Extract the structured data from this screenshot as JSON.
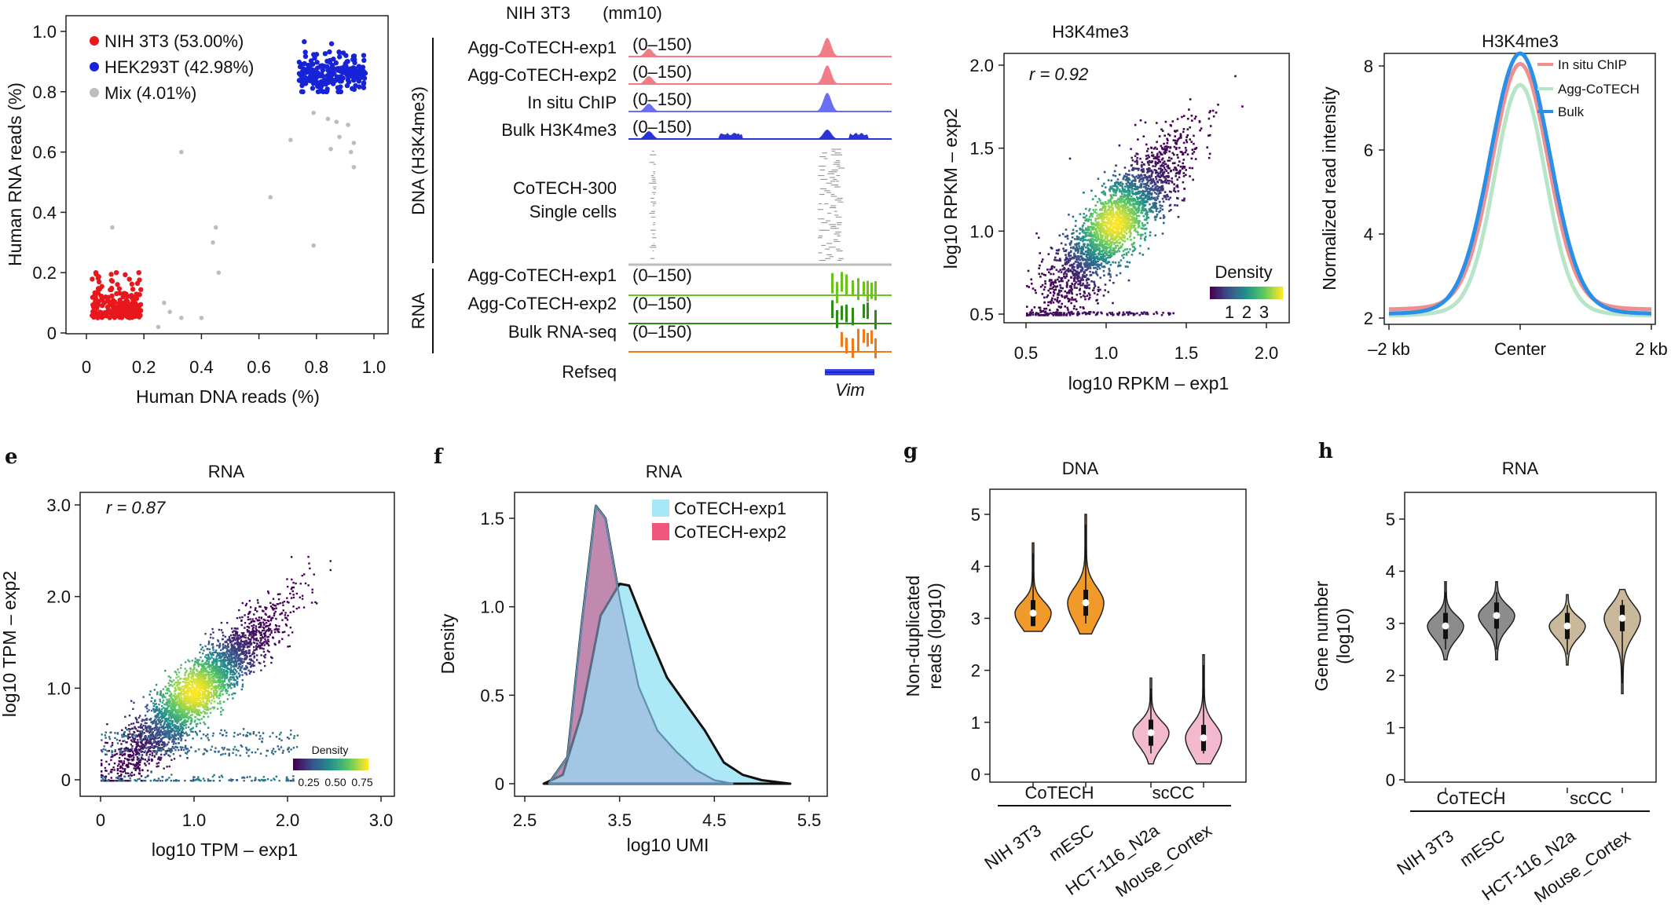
{
  "colors": {
    "red": "#e8171c",
    "blue": "#1723d6",
    "grey": "#bdbdbd",
    "trackRed": "#f07c86",
    "trackBlue": "#6a6ef0",
    "bulkBlue": "#2a33d8",
    "green": "#6cc11c",
    "darkGreen": "#2f8a1a",
    "orange": "#f07a18",
    "cyan": "#a6e6f5",
    "pink": "#f0567a",
    "violinOrange": "#f19a2a",
    "violinPink": "#f3b9cf",
    "violinGrey": "#8c8c8c",
    "violinTan": "#c9b99a",
    "profileRed": "#f08f8f",
    "profileGreen": "#b7e5c8",
    "profileBlue": "#2a8fe6"
  },
  "panelA": {
    "chart_data": {
      "type": "scatter",
      "xlabel": "Human DNA reads (%)",
      "ylabel": "Human RNA reads (%)",
      "xlim": [
        0,
        1
      ],
      "ylim": [
        0,
        1
      ],
      "xticks": [
        "0",
        "0.2",
        "0.4",
        "0.6",
        "0.8",
        "1.0"
      ],
      "yticks": [
        "0",
        "0.2",
        "0.4",
        "0.6",
        "0.8",
        "1.0"
      ],
      "series": [
        {
          "name": "NIH 3T3 (53.00%)",
          "color": "#e8171c",
          "x_range": [
            0.02,
            0.19
          ],
          "y_range": [
            0.0,
            0.2
          ]
        },
        {
          "name": "HEK293T (42.98%)",
          "color": "#1723d6",
          "x_range": [
            0.74,
            0.97
          ],
          "y_range": [
            0.8,
            0.98
          ]
        },
        {
          "name": "Mix (4.01%)",
          "color": "#bdbdbd",
          "points": [
            [
              0.09,
              0.35
            ],
            [
              0.33,
              0.6
            ],
            [
              0.45,
              0.35
            ],
            [
              0.44,
              0.3
            ],
            [
              0.46,
              0.2
            ],
            [
              0.4,
              0.05
            ],
            [
              0.33,
              0.05
            ],
            [
              0.29,
              0.07
            ],
            [
              0.27,
              0.1
            ],
            [
              0.25,
              0.02
            ],
            [
              0.64,
              0.45
            ],
            [
              0.71,
              0.64
            ],
            [
              0.79,
              0.29
            ],
            [
              0.79,
              0.73
            ],
            [
              0.84,
              0.71
            ],
            [
              0.87,
              0.7
            ],
            [
              0.91,
              0.69
            ],
            [
              0.93,
              0.63
            ],
            [
              0.93,
              0.55
            ],
            [
              0.88,
              0.65
            ],
            [
              0.85,
              0.61
            ],
            [
              0.92,
              0.6
            ]
          ]
        }
      ],
      "legend": "top-left"
    }
  },
  "panelB": {
    "header_left": "NIH 3T3",
    "header_right": "(mm10)",
    "group_dna": "DNA (H3K4me3)",
    "group_rna": "RNA",
    "tracks": [
      {
        "label": "Agg-CoTECH-exp1",
        "range": "(0–150)",
        "color": "#f07c86"
      },
      {
        "label": "Agg-CoTECH-exp2",
        "range": "(0–150)",
        "color": "#f07c86"
      },
      {
        "label": "In situ ChIP",
        "range": "(0–150)",
        "color": "#6a6ef0"
      },
      {
        "label": "Bulk H3K4me3",
        "range": "(0–150)",
        "color": "#2a33d8"
      }
    ],
    "single_cells_label_1": "CoTECH-300",
    "single_cells_label_2": "Single cells",
    "rna_tracks": [
      {
        "label": "Agg-CoTECH-exp1",
        "range": "(0–150)",
        "color": "#6cc11c"
      },
      {
        "label": "Agg-CoTECH-exp2",
        "range": "(0–150)",
        "color": "#2f8a1a"
      },
      {
        "label": "Bulk RNA-seq",
        "range": "(0–150)",
        "color": "#f07a18"
      }
    ],
    "refseq_label": "Refseq",
    "gene": "Vim"
  },
  "panelC": {
    "chart_data": {
      "type": "scatter",
      "title": "H3K4me3",
      "annotation": "r = 0.92",
      "xlabel": "log10 RPKM – exp1",
      "ylabel": "log10 RPKM – exp2",
      "xlim": [
        0.45,
        2.05
      ],
      "ylim": [
        0.45,
        2.05
      ],
      "xticks": [
        "0.5",
        "1.0",
        "1.5",
        "2.0"
      ],
      "yticks": [
        "0.5",
        "1.0",
        "1.5",
        "2.0"
      ],
      "density_legend_title": "Density",
      "density_legend_ticks": [
        "1",
        "2",
        "3"
      ]
    }
  },
  "panelD": {
    "chart_data": {
      "type": "line",
      "title": "H3K4me3",
      "ylabel": "Normalized read intensity",
      "xticks": [
        "–2 kb",
        "Center",
        "2 kb"
      ],
      "yticks": [
        "2",
        "4",
        "6",
        "8"
      ],
      "ylim": [
        1.8,
        8.4
      ],
      "series": [
        {
          "name": "In situ ChIP",
          "color": "#f08f8f",
          "peak": 7.8,
          "base": 2.2
        },
        {
          "name": "Agg-CoTECH",
          "color": "#b7e5c8",
          "peak": 7.3,
          "base": 2.05
        },
        {
          "name": "Bulk",
          "color": "#2a8fe6",
          "peak": 8.05,
          "base": 2.1
        }
      ],
      "legend": "top-right"
    }
  },
  "panelE": {
    "letter": "e",
    "chart_data": {
      "type": "scatter",
      "title": "RNA",
      "annotation": "r = 0.87",
      "xlabel": "log10 TPM – exp1",
      "ylabel": "log10 TPM – exp2",
      "xlim": [
        -0.05,
        3.1
      ],
      "ylim": [
        -0.05,
        3.1
      ],
      "xticks": [
        "0",
        "1.0",
        "2.0",
        "3.0"
      ],
      "yticks": [
        "0",
        "1.0",
        "2.0",
        "3.0"
      ],
      "density_legend_title": "Density",
      "density_legend_ticks": [
        "0.25",
        "0.50",
        "0.75"
      ]
    }
  },
  "panelF": {
    "letter": "f",
    "chart_data": {
      "type": "area",
      "title": "RNA",
      "xlabel": "log10 UMI",
      "ylabel": "Density",
      "xlim": [
        2.3,
        5.7
      ],
      "ylim": [
        -0.05,
        1.7
      ],
      "xticks": [
        "2.5",
        "3.5",
        "4.5",
        "5.5"
      ],
      "yticks": [
        "0",
        "0.5",
        "1.0",
        "1.5"
      ],
      "series": [
        {
          "name": "CoTECH-exp1",
          "color": "#a6e6f5",
          "x": [
            2.7,
            2.9,
            3.1,
            3.3,
            3.5,
            3.6,
            3.8,
            4.0,
            4.2,
            4.4,
            4.6,
            4.8,
            5.0,
            5.3
          ],
          "y": [
            0,
            0.05,
            0.4,
            0.95,
            1.13,
            1.12,
            0.85,
            0.6,
            0.45,
            0.3,
            0.12,
            0.05,
            0.02,
            0
          ]
        },
        {
          "name": "CoTECH-exp2",
          "color": "#f0567a",
          "x": [
            2.75,
            2.95,
            3.1,
            3.25,
            3.35,
            3.5,
            3.7,
            3.9,
            4.1,
            4.3,
            4.5,
            4.7
          ],
          "y": [
            0,
            0.15,
            0.9,
            1.57,
            1.5,
            1.05,
            0.55,
            0.3,
            0.18,
            0.08,
            0.02,
            0
          ]
        }
      ],
      "legend": "top-right"
    }
  },
  "panelG": {
    "letter": "g",
    "chart_data": {
      "type": "violin",
      "title": "DNA",
      "ylabel_1": "Non-duplicated",
      "ylabel_2": "reads (log10)",
      "ylim": [
        -0.1,
        5.5
      ],
      "yticks": [
        "0",
        "1",
        "2",
        "3",
        "4",
        "5"
      ],
      "groups": [
        "CoTECH",
        "scCC"
      ],
      "categories": [
        "NIH 3T3",
        "mESC",
        "HCT-116_N2a",
        "Mouse_Cortex"
      ],
      "medians": [
        3.1,
        3.3,
        0.8,
        0.7
      ],
      "ranges": [
        [
          2.75,
          4.45
        ],
        [
          2.7,
          5.0
        ],
        [
          0.2,
          1.85
        ],
        [
          0.2,
          2.3
        ]
      ]
    }
  },
  "panelH": {
    "letter": "h",
    "chart_data": {
      "type": "violin",
      "title": "RNA",
      "ylabel_1": "Gene number",
      "ylabel_2": "(log10)",
      "ylim": [
        -0.1,
        5.5
      ],
      "yticks": [
        "0",
        "1",
        "2",
        "3",
        "4",
        "5"
      ],
      "groups": [
        "CoTECH",
        "scCC"
      ],
      "categories": [
        "NIH 3T3",
        "mESC",
        "HCT-116_N2a",
        "Mouse_Cortex"
      ],
      "medians": [
        2.95,
        3.15,
        2.95,
        3.1
      ],
      "ranges": [
        [
          2.3,
          3.8
        ],
        [
          2.3,
          3.8
        ],
        [
          2.2,
          3.55
        ],
        [
          1.65,
          3.65
        ]
      ]
    }
  }
}
